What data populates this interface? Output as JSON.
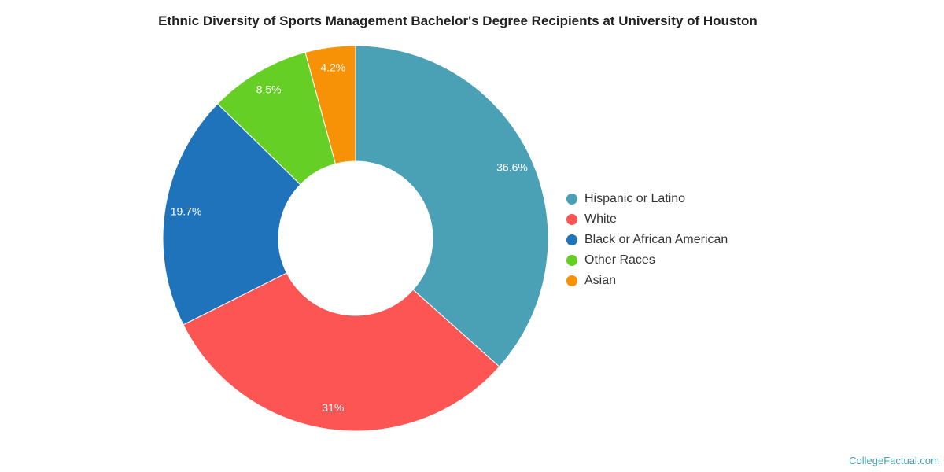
{
  "chart_data": {
    "type": "pie",
    "title": "Ethnic Diversity of Sports Management Bachelor's Degree Recipients at University of Houston",
    "donut": true,
    "legend_position": "right",
    "slices": [
      {
        "name": "Hispanic or Latino",
        "value": 36.6,
        "label": "36.6%",
        "color": "#4aa0b4"
      },
      {
        "name": "White",
        "value": 31.0,
        "label": "31%",
        "color": "#fd5454"
      },
      {
        "name": "Black or African American",
        "value": 19.7,
        "label": "19.7%",
        "color": "#1e73ba"
      },
      {
        "name": "Other Races",
        "value": 8.5,
        "label": "8.5%",
        "color": "#65cf25"
      },
      {
        "name": "Asian",
        "value": 4.2,
        "label": "4.2%",
        "color": "#f79207"
      }
    ]
  },
  "watermark": "CollegeFactual.com"
}
